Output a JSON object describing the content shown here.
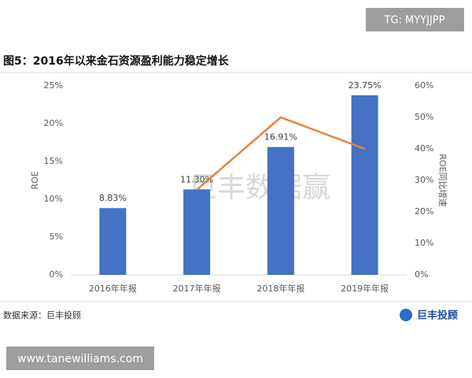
{
  "tag": "TG: MYYJJPP",
  "website": "www.tanewilliams.com",
  "source": "数据来源：巨丰投顾",
  "logo_text": "巨丰投顾",
  "watermark": "巨丰数据赢",
  "chart_data": {
    "type": "bar-line",
    "title": "图5：2016年以来金石资源盈利能力稳定增长",
    "y_label": "ROE",
    "y2_label": "ROE同比增速",
    "categories": [
      "2016年年报",
      "2017年年报",
      "2018年年报",
      "2019年年报"
    ],
    "series": [
      {
        "name": "ROE",
        "type": "bar",
        "color": "#4472c4",
        "values": [
          8.83,
          11.3,
          16.91,
          23.75
        ],
        "value_labels": [
          "8.83%",
          "11.30%",
          "16.91%",
          "23.75%"
        ]
      },
      {
        "name": "ROE同比增速",
        "type": "line",
        "axis": "y2",
        "color": "#e8803a",
        "values": [
          null,
          27,
          50,
          40
        ]
      }
    ],
    "ylim": [
      0,
      25
    ],
    "yticks": [
      {
        "value": 0,
        "label": "0%"
      },
      {
        "value": 5,
        "label": "5%"
      },
      {
        "value": 10,
        "label": "10%"
      },
      {
        "value": 15,
        "label": "15%"
      },
      {
        "value": 20,
        "label": "20%"
      },
      {
        "value": 25,
        "label": "25%"
      }
    ],
    "y2lim": [
      0,
      60
    ],
    "y2ticks": [
      {
        "value": 0,
        "label": "0%"
      },
      {
        "value": 10,
        "label": "10%"
      },
      {
        "value": 20,
        "label": "20%"
      },
      {
        "value": 30,
        "label": "30%"
      },
      {
        "value": 40,
        "label": "40%"
      },
      {
        "value": 50,
        "label": "50%"
      },
      {
        "value": 60,
        "label": "60%"
      }
    ]
  }
}
